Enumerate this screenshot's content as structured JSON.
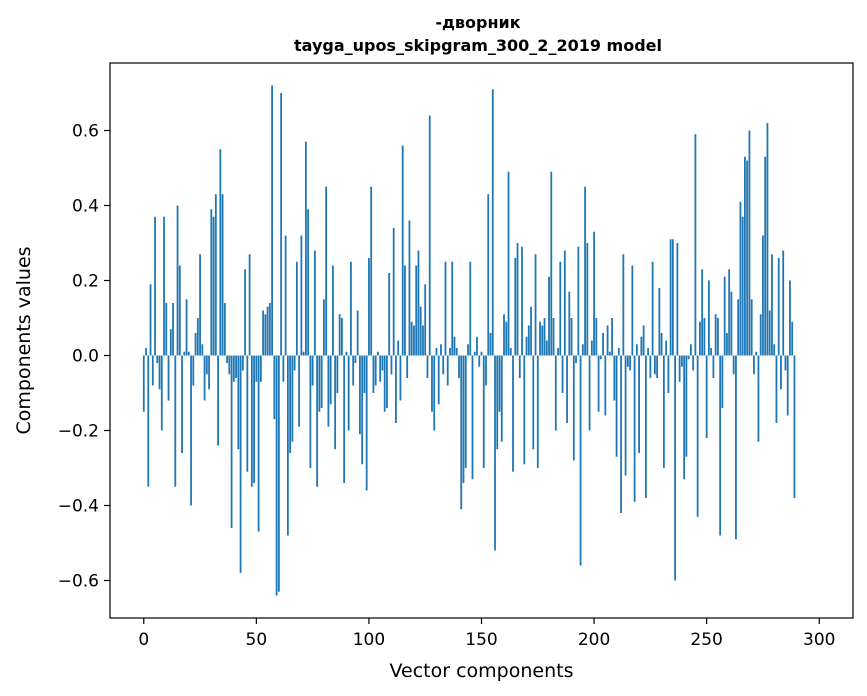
{
  "chart_data": {
    "type": "bar",
    "title_line1": "-дворник",
    "title_line2": "tayga_upos_skipgram_300_2_2019 model",
    "xlabel": "Vector components",
    "ylabel": "Components values",
    "xlim": [
      -15,
      315
    ],
    "ylim": [
      -0.7,
      0.78
    ],
    "xticks": [
      0,
      50,
      100,
      150,
      200,
      250,
      300
    ],
    "xtick_labels": [
      "0",
      "50",
      "100",
      "150",
      "200",
      "250",
      "300"
    ],
    "yticks": [
      -0.6,
      -0.4,
      -0.2,
      0.0,
      0.2,
      0.4,
      0.6
    ],
    "ytick_labels": [
      "−0.6",
      "−0.4",
      "−0.2",
      "0.0",
      "0.2",
      "0.4",
      "0.6"
    ],
    "bar_color": "#1f77b4",
    "grid": false,
    "legend": "none",
    "values": [
      -0.15,
      0.02,
      -0.35,
      0.19,
      -0.08,
      0.37,
      -0.02,
      -0.09,
      -0.2,
      0.37,
      0.14,
      -0.12,
      0.07,
      0.14,
      -0.35,
      0.4,
      0.24,
      -0.26,
      0.01,
      0.15,
      0.01,
      -0.4,
      -0.08,
      0.06,
      0.1,
      0.27,
      0.03,
      -0.12,
      -0.05,
      -0.09,
      0.39,
      0.37,
      0.43,
      -0.24,
      0.55,
      0.43,
      0.14,
      -0.02,
      -0.05,
      -0.46,
      -0.07,
      -0.06,
      -0.25,
      -0.58,
      -0.04,
      0.23,
      -0.31,
      0.27,
      -0.35,
      -0.34,
      -0.07,
      -0.47,
      -0.07,
      0.12,
      0.11,
      0.13,
      0.14,
      0.72,
      -0.17,
      -0.64,
      -0.63,
      0.7,
      -0.07,
      0.32,
      -0.48,
      -0.26,
      -0.23,
      -0.04,
      0.25,
      -0.19,
      0.32,
      0.01,
      0.57,
      0.39,
      -0.3,
      -0.08,
      0.28,
      -0.35,
      -0.15,
      -0.14,
      0.15,
      0.45,
      -0.19,
      -0.13,
      0.24,
      -0.25,
      -0.1,
      0.11,
      0.1,
      -0.34,
      0.01,
      -0.2,
      0.25,
      -0.08,
      -0.02,
      0.12,
      -0.21,
      -0.29,
      -0.1,
      -0.36,
      0.26,
      0.45,
      -0.1,
      -0.08,
      0.01,
      -0.07,
      -0.04,
      -0.15,
      -0.14,
      0.22,
      -0.05,
      0.34,
      -0.18,
      0.04,
      -0.12,
      0.56,
      0.24,
      -0.06,
      0.36,
      0.09,
      0.08,
      0.24,
      0.28,
      0.13,
      0.08,
      0.19,
      -0.06,
      0.64,
      -0.15,
      -0.2,
      0.02,
      -0.13,
      0.03,
      -0.05,
      0.25,
      -0.08,
      0.02,
      0.25,
      0.05,
      0.02,
      -0.06,
      -0.41,
      -0.34,
      -0.3,
      0.03,
      0.25,
      -0.33,
      0.01,
      0.05,
      -0.03,
      0.01,
      -0.3,
      -0.08,
      0.43,
      0.06,
      0.71,
      -0.52,
      -0.25,
      -0.15,
      -0.23,
      0.11,
      0.09,
      0.49,
      0.02,
      -0.31,
      0.26,
      0.3,
      -0.06,
      0.29,
      -0.29,
      0.05,
      0.08,
      0.13,
      -0.25,
      0.27,
      -0.3,
      0.09,
      0.08,
      0.1,
      0.04,
      0.21,
      0.49,
      0.1,
      -0.2,
      0.02,
      0.25,
      -0.1,
      0.28,
      -0.18,
      0.17,
      0.1,
      -0.28,
      -0.02,
      0.29,
      -0.56,
      0.03,
      0.45,
      0.3,
      -0.2,
      0.04,
      0.33,
      0.1,
      -0.15,
      -0.01,
      0.06,
      -0.16,
      0.08,
      0.01,
      0.1,
      -0.12,
      -0.27,
      0.02,
      -0.42,
      0.27,
      -0.32,
      -0.03,
      -0.04,
      0.24,
      -0.39,
      0.03,
      -0.26,
      0.05,
      0.08,
      -0.38,
      0.02,
      -0.06,
      0.25,
      -0.05,
      -0.06,
      0.18,
      0.06,
      -0.3,
      0.04,
      -0.1,
      0.31,
      0.31,
      -0.6,
      0.3,
      -0.07,
      -0.03,
      -0.33,
      -0.27,
      -0.01,
      0.03,
      -0.04,
      0.59,
      -0.43,
      0.09,
      0.23,
      0.1,
      -0.22,
      0.2,
      0.02,
      -0.06,
      0.11,
      0.1,
      -0.48,
      -0.14,
      0.21,
      0.06,
      0.23,
      0.17,
      -0.05,
      -0.49,
      0.15,
      0.41,
      0.37,
      0.53,
      0.52,
      0.6,
      0.15,
      -0.05,
      0.01,
      -0.23,
      0.11,
      0.32,
      0.53,
      0.62,
      0.12,
      0.27,
      0.03,
      -0.18,
      0.26,
      -0.09,
      0.28,
      -0.04,
      -0.16,
      0.2,
      0.09,
      -0.38
    ]
  }
}
